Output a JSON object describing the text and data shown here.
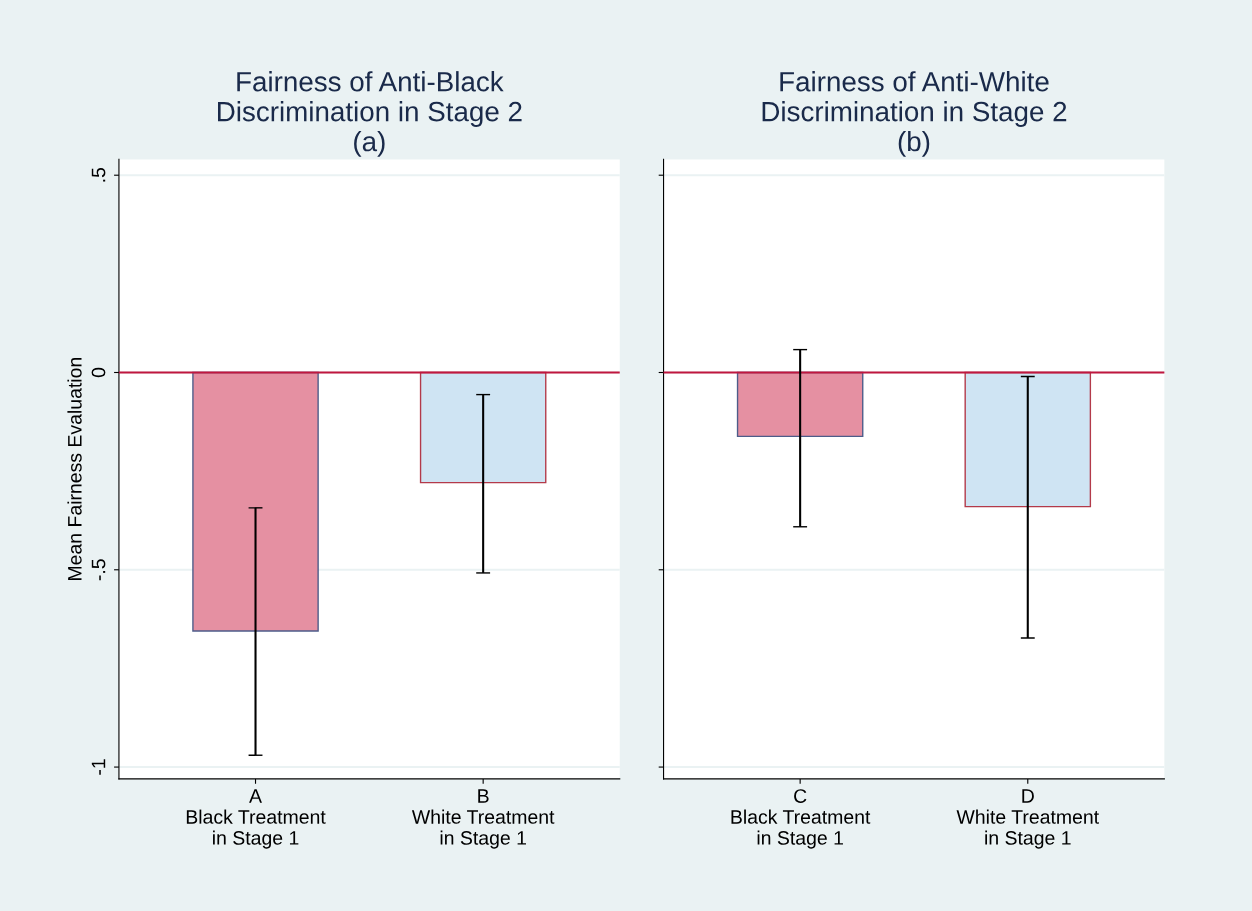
{
  "chart_data": [
    {
      "type": "bar",
      "title": "Fairness of Anti-Black\nDiscrimination in Stage 2\n(a)",
      "ylabel": "Mean Fairness Evaluation",
      "categories": [
        "A\nBlack Treatment\nin Stage 1",
        "B\nWhite Treatment\nin Stage 1"
      ],
      "values": [
        -0.655,
        -0.279
      ],
      "colors": [
        "#e590a2",
        "#cfe4f3"
      ],
      "errors": [
        [
          -0.97,
          -0.343
        ],
        [
          -0.508,
          -0.056
        ]
      ],
      "ylim": [
        -1.03,
        0.54
      ],
      "yticks": [
        {
          "value": -1,
          "label": "-1"
        },
        {
          "value": -0.5,
          "label": "-.5"
        },
        {
          "value": 0,
          "label": "0"
        },
        {
          "value": 0.5,
          "label": ".5"
        }
      ],
      "grid": "y",
      "ref_lines": [
        {
          "axis": "y",
          "value": 0,
          "color": "#c0173f"
        }
      ]
    },
    {
      "type": "bar",
      "title": "Fairness of Anti-White\nDiscrimination in Stage 2\n(b)",
      "categories": [
        "C\nBlack Treatment\nin Stage 1",
        "D\nWhite Treatment\nin Stage 1"
      ],
      "values": [
        -0.162,
        -0.34
      ],
      "colors": [
        "#e590a2",
        "#cfe4f3"
      ],
      "errors": [
        [
          -0.391,
          0.058
        ],
        [
          -0.673,
          -0.01
        ]
      ],
      "ylim": [
        -1.03,
        0.54
      ],
      "yticks": [
        {
          "value": -1,
          "label": null
        },
        {
          "value": -0.5,
          "label": null
        },
        {
          "value": 0,
          "label": null
        },
        {
          "value": 0.5,
          "label": null
        }
      ],
      "grid": "y",
      "tick_labels": "x",
      "ref_lines": [
        {
          "axis": "y",
          "value": 0,
          "color": "#c0173f"
        }
      ]
    }
  ]
}
